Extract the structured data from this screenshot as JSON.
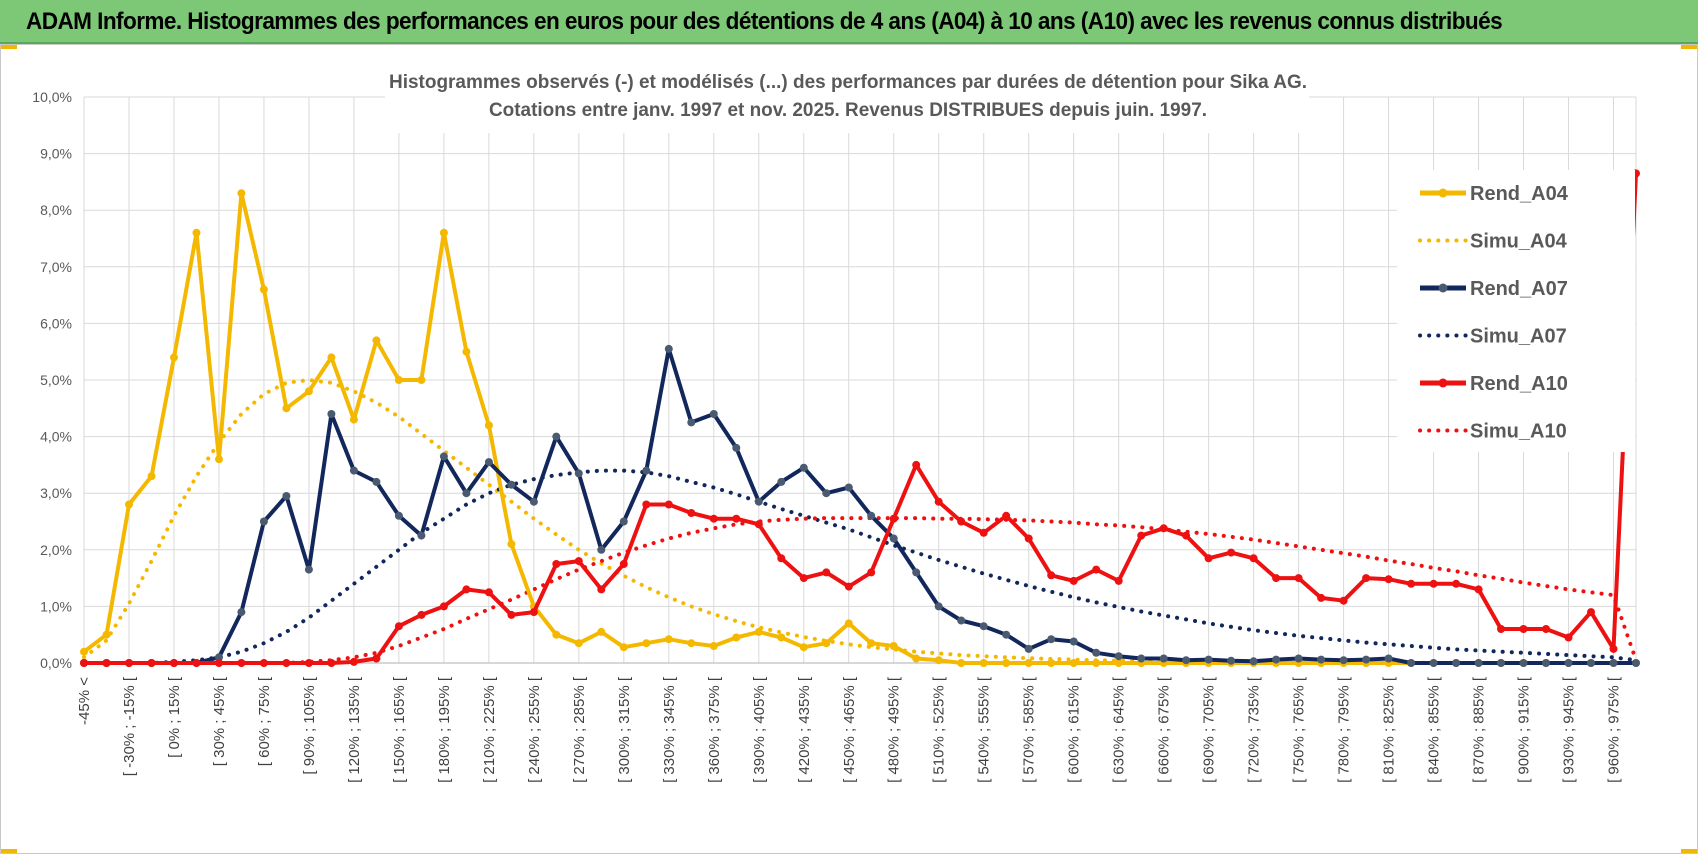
{
  "header": {
    "title": "ADAM Informe. Histogrammes des performances en euros pour des détentions de 4 ans (A04) à 10 ans (A10) avec les revenus connus distribués"
  },
  "colors": {
    "banner": "#7dc876",
    "a04": "#f5b800",
    "a07": "#12275c",
    "a07_marker": "#4a5a70",
    "a10": "#ee1111",
    "grid": "#d9d9d9",
    "axis_text": "#595959"
  },
  "chart_data": {
    "type": "line",
    "title": [
      "Histogrammes observés (-) et modélisés (...) des performances par durées de détention pour Sika AG.",
      "Cotations entre janv. 1997 et nov. 2025. Revenus DISTRIBUES depuis juin. 1997."
    ],
    "y_unit": "percent",
    "ylim": [
      0,
      10
    ],
    "y_ticks": [
      "0,0%",
      "1,0%",
      "2,0%",
      "3,0%",
      "4,0%",
      "5,0%",
      "6,0%",
      "7,0%",
      "8,0%",
      "9,0%",
      "10,0%"
    ],
    "x_tick_labels": [
      "-45% <",
      "[ -30% ; -15% [",
      "[ 0% ; 15% [",
      "[ 30% ; 45% [",
      "[ 60% ; 75% [",
      "[ 90% ; 105% [",
      "[ 120% ; 135% [",
      "[ 150% ; 165% [",
      "[ 180% ; 195% [",
      "[ 210% ; 225% [",
      "[ 240% ; 255% [",
      "[ 270% ; 285% [",
      "[ 300% ; 315% [",
      "[ 330% ; 345% [",
      "[ 360% ; 375% [",
      "[ 390% ; 405% [",
      "[ 420% ; 435% [",
      "[ 450% ; 465% [",
      "[ 480% ; 495% [",
      "[ 510% ; 525% [",
      "[ 540% ; 555% [",
      "[ 570% ; 585% [",
      "[ 600% ; 615% [",
      "[ 630% ; 645% [",
      "[ 660% ; 675% [",
      "[ 690% ; 705% [",
      "[ 720% ; 735% [",
      "[ 750% ; 765% [",
      "[ 780% ; 795% [",
      "[ 810% ; 825% [",
      "[ 840% ; 855% [",
      "[ 870% ; 885% [",
      "[ 900% ; 915% [",
      "[ 930% ; 945% [",
      "[ 960% ; 975% ["
    ],
    "grid": true,
    "legend_position": "right",
    "series": [
      {
        "name": "Rend_A04",
        "style": "solid",
        "color": "#f5b800",
        "values": [
          0.2,
          0.5,
          2.8,
          3.3,
          5.4,
          7.6,
          3.6,
          8.3,
          6.6,
          4.5,
          4.8,
          5.4,
          4.3,
          5.7,
          5.0,
          5.0,
          7.6,
          5.5,
          4.2,
          2.1,
          1.0,
          0.5,
          0.35,
          0.55,
          0.28,
          0.35,
          0.42,
          0.35,
          0.3,
          0.45,
          0.55,
          0.45,
          0.28,
          0.35,
          0.7,
          0.35,
          0.3,
          0.08,
          0.05,
          0,
          0,
          0,
          0,
          0,
          0,
          0,
          0,
          0,
          0,
          0,
          0,
          0,
          0,
          0,
          0,
          0,
          0,
          0,
          0,
          0,
          0,
          0,
          0,
          0,
          0,
          0,
          0,
          0,
          0,
          0
        ]
      },
      {
        "name": "Simu_A04",
        "style": "dotted",
        "color": "#f5b800",
        "values": [
          0.1,
          0.4,
          1.05,
          1.8,
          2.6,
          3.3,
          3.9,
          4.4,
          4.75,
          4.95,
          5.0,
          4.95,
          4.8,
          4.6,
          4.35,
          4.05,
          3.75,
          3.45,
          3.15,
          2.85,
          2.55,
          2.27,
          2.0,
          1.76,
          1.54,
          1.34,
          1.16,
          1.0,
          0.86,
          0.74,
          0.63,
          0.54,
          0.46,
          0.39,
          0.33,
          0.28,
          0.24,
          0.2,
          0.17,
          0.14,
          0.12,
          0.1,
          0.085,
          0.072,
          0.06,
          0.05,
          0.042,
          0.035,
          0.03,
          0.025,
          0.021,
          0.018,
          0.015,
          0.012,
          0.01,
          0.008,
          0.007,
          0.006,
          0.005,
          0.004,
          0.003,
          0.002,
          0.002,
          0.001,
          0.001,
          0,
          0,
          0,
          0,
          0
        ]
      },
      {
        "name": "Rend_A07",
        "style": "solid",
        "color": "#12275c",
        "marker": "#4a5a70",
        "values": [
          0,
          0,
          0,
          0,
          0,
          0,
          0.1,
          0.9,
          2.5,
          2.95,
          1.65,
          4.4,
          3.4,
          3.2,
          2.6,
          2.25,
          3.65,
          3.0,
          3.55,
          3.15,
          2.85,
          4.0,
          3.35,
          2.0,
          2.5,
          3.4,
          5.55,
          4.25,
          4.4,
          3.8,
          2.85,
          3.2,
          3.45,
          3.0,
          3.1,
          2.6,
          2.2,
          1.6,
          1.0,
          0.75,
          0.65,
          0.5,
          0.25,
          0.42,
          0.38,
          0.18,
          0.12,
          0.08,
          0.08,
          0.05,
          0.06,
          0.04,
          0.03,
          0.06,
          0.08,
          0.06,
          0.05,
          0.06,
          0.08,
          0,
          0,
          0,
          0,
          0,
          0,
          0,
          0,
          0,
          0,
          0
        ]
      },
      {
        "name": "Simu_A07",
        "style": "dotted",
        "color": "#12275c",
        "values": [
          0,
          0,
          0,
          0,
          0.02,
          0.05,
          0.1,
          0.2,
          0.35,
          0.55,
          0.8,
          1.1,
          1.4,
          1.7,
          2.0,
          2.3,
          2.55,
          2.8,
          3.0,
          3.15,
          3.25,
          3.32,
          3.37,
          3.4,
          3.4,
          3.37,
          3.3,
          3.2,
          3.1,
          2.98,
          2.85,
          2.72,
          2.6,
          2.48,
          2.36,
          2.22,
          2.08,
          1.95,
          1.82,
          1.7,
          1.58,
          1.47,
          1.36,
          1.26,
          1.16,
          1.07,
          0.99,
          0.91,
          0.84,
          0.77,
          0.7,
          0.64,
          0.58,
          0.53,
          0.48,
          0.44,
          0.4,
          0.36,
          0.33,
          0.3,
          0.27,
          0.24,
          0.22,
          0.2,
          0.18,
          0.16,
          0.14,
          0.12,
          0.1,
          0.05
        ]
      },
      {
        "name": "Rend_A10",
        "style": "solid",
        "color": "#ee1111",
        "values": [
          0,
          0,
          0,
          0,
          0,
          0,
          0,
          0,
          0,
          0,
          0,
          0,
          0.02,
          0.08,
          0.65,
          0.85,
          1.0,
          1.3,
          1.25,
          0.85,
          0.9,
          1.75,
          1.8,
          1.3,
          1.75,
          2.8,
          2.8,
          2.65,
          2.55,
          2.55,
          2.45,
          1.85,
          1.5,
          1.6,
          1.35,
          1.6,
          2.55,
          3.5,
          2.85,
          2.5,
          2.3,
          2.6,
          2.2,
          1.55,
          1.45,
          1.65,
          1.45,
          2.25,
          2.38,
          2.25,
          1.85,
          1.95,
          1.85,
          1.5,
          1.5,
          1.15,
          1.1,
          1.5,
          1.48,
          1.4,
          1.4,
          1.4,
          1.3,
          0.6,
          0.6,
          0.6,
          0.45,
          0.9,
          0.25,
          8.65
        ]
      },
      {
        "name": "Simu_A10",
        "style": "dotted",
        "color": "#ee1111",
        "values": [
          0,
          0,
          0,
          0,
          0,
          0,
          0,
          0,
          0,
          0,
          0.02,
          0.05,
          0.1,
          0.18,
          0.3,
          0.45,
          0.6,
          0.78,
          0.95,
          1.12,
          1.3,
          1.48,
          1.65,
          1.8,
          1.95,
          2.08,
          2.2,
          2.3,
          2.38,
          2.45,
          2.5,
          2.53,
          2.55,
          2.56,
          2.56,
          2.56,
          2.56,
          2.56,
          2.55,
          2.55,
          2.54,
          2.53,
          2.52,
          2.5,
          2.48,
          2.45,
          2.43,
          2.4,
          2.36,
          2.32,
          2.28,
          2.23,
          2.18,
          2.12,
          2.06,
          2.0,
          1.94,
          1.88,
          1.81,
          1.75,
          1.68,
          1.62,
          1.55,
          1.49,
          1.42,
          1.36,
          1.3,
          1.25,
          1.2,
          0.05
        ]
      }
    ]
  }
}
